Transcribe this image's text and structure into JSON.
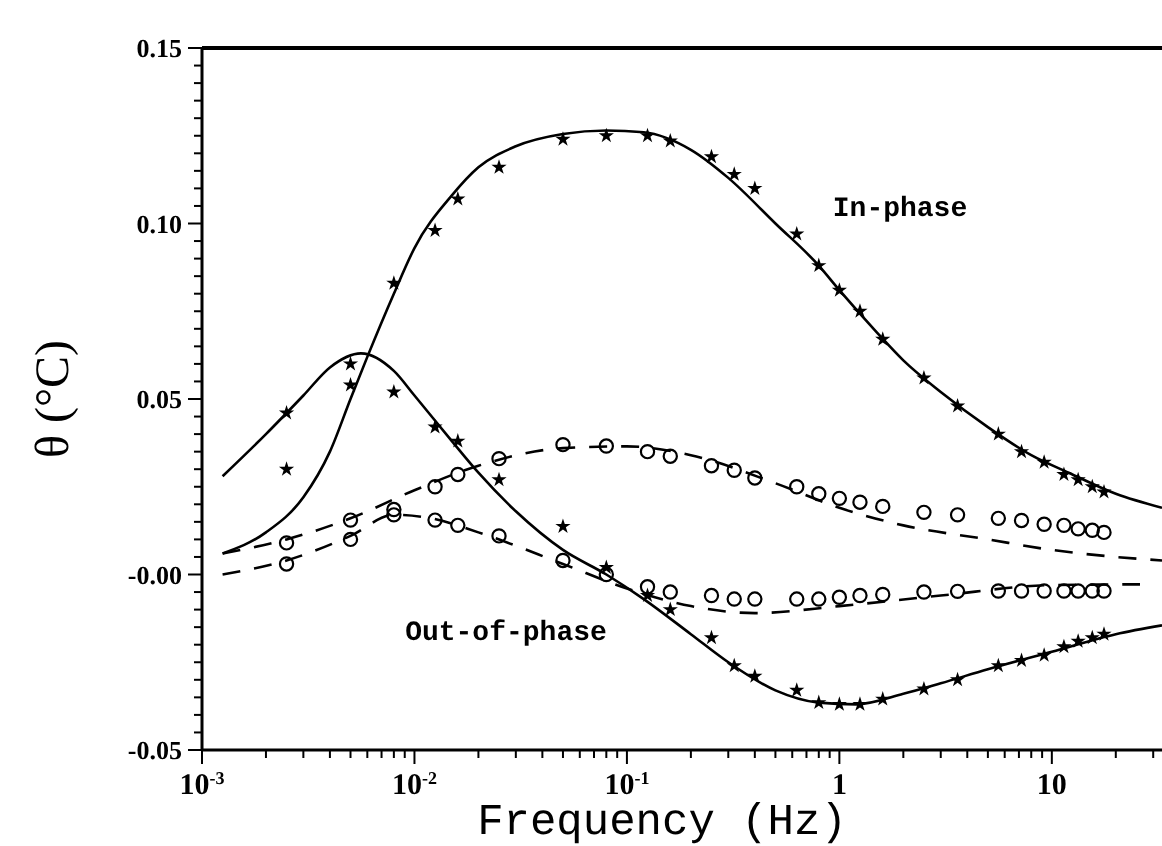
{
  "chart_data": {
    "type": "scatter",
    "xlabel": "Frequency (Hz)",
    "ylabel": "θ (°C)",
    "log": "x",
    "xlim": [
      0.001,
      33
    ],
    "ylim": [
      -0.05,
      0.15
    ],
    "xticks": [
      {
        "value": 0.001,
        "label": "10$^{-3}$"
      },
      {
        "value": 0.002,
        "label": null
      },
      {
        "value": 0.003,
        "label": null
      },
      {
        "value": 0.004,
        "label": null
      },
      {
        "value": 0.005,
        "label": null
      },
      {
        "value": 0.006,
        "label": null
      },
      {
        "value": 0.007,
        "label": null
      },
      {
        "value": 0.008,
        "label": null
      },
      {
        "value": 0.009,
        "label": null
      },
      {
        "value": 0.01,
        "label": "10$^{-2}$"
      },
      {
        "value": 0.02,
        "label": null
      },
      {
        "value": 0.03,
        "label": null
      },
      {
        "value": 0.04,
        "label": null
      },
      {
        "value": 0.05,
        "label": null
      },
      {
        "value": 0.06,
        "label": null
      },
      {
        "value": 0.07,
        "label": null
      },
      {
        "value": 0.08,
        "label": null
      },
      {
        "value": 0.09,
        "label": null
      },
      {
        "value": 0.1,
        "label": "10$^{-1}$"
      },
      {
        "value": 0.2,
        "label": null
      },
      {
        "value": 0.3,
        "label": null
      },
      {
        "value": 0.4,
        "label": null
      },
      {
        "value": 0.5,
        "label": null
      },
      {
        "value": 0.6,
        "label": null
      },
      {
        "value": 0.7,
        "label": null
      },
      {
        "value": 0.8,
        "label": null
      },
      {
        "value": 0.9,
        "label": null
      },
      {
        "value": 1,
        "label": "1"
      },
      {
        "value": 2,
        "label": null
      },
      {
        "value": 3,
        "label": null
      },
      {
        "value": 4,
        "label": null
      },
      {
        "value": 5,
        "label": null
      },
      {
        "value": 6,
        "label": null
      },
      {
        "value": 7,
        "label": null
      },
      {
        "value": 8,
        "label": null
      },
      {
        "value": 9,
        "label": null
      },
      {
        "value": 10,
        "label": "10"
      },
      {
        "value": 20,
        "label": null
      },
      {
        "value": 30,
        "label": null
      }
    ],
    "yticks": [
      {
        "value": -0.05,
        "label": "-0.05"
      },
      {
        "value": -0.045,
        "label": null
      },
      {
        "value": -0.04,
        "label": null
      },
      {
        "value": -0.035,
        "label": null
      },
      {
        "value": -0.03,
        "label": null
      },
      {
        "value": -0.025,
        "label": null
      },
      {
        "value": -0.02,
        "label": null
      },
      {
        "value": -0.015,
        "label": null
      },
      {
        "value": -0.01,
        "label": null
      },
      {
        "value": -0.005,
        "label": null
      },
      {
        "value": 0,
        "label": "-0.00"
      },
      {
        "value": 0.005,
        "label": null
      },
      {
        "value": 0.01,
        "label": null
      },
      {
        "value": 0.015,
        "label": null
      },
      {
        "value": 0.02,
        "label": null
      },
      {
        "value": 0.025,
        "label": null
      },
      {
        "value": 0.03,
        "label": null
      },
      {
        "value": 0.035,
        "label": null
      },
      {
        "value": 0.04,
        "label": null
      },
      {
        "value": 0.045,
        "label": null
      },
      {
        "value": 0.05,
        "label": "0.05"
      },
      {
        "value": 0.055,
        "label": null
      },
      {
        "value": 0.06,
        "label": null
      },
      {
        "value": 0.065,
        "label": null
      },
      {
        "value": 0.07,
        "label": null
      },
      {
        "value": 0.075,
        "label": null
      },
      {
        "value": 0.08,
        "label": null
      },
      {
        "value": 0.085,
        "label": null
      },
      {
        "value": 0.09,
        "label": null
      },
      {
        "value": 0.095,
        "label": null
      },
      {
        "value": 0.1,
        "label": "0.10"
      },
      {
        "value": 0.105,
        "label": null
      },
      {
        "value": 0.11,
        "label": null
      },
      {
        "value": 0.115,
        "label": null
      },
      {
        "value": 0.12,
        "label": null
      },
      {
        "value": 0.125,
        "label": null
      },
      {
        "value": 0.13,
        "label": null
      },
      {
        "value": 0.135,
        "label": null
      },
      {
        "value": 0.14,
        "label": null
      },
      {
        "value": 0.145,
        "label": null
      },
      {
        "value": 0.15,
        "label": "0.15"
      }
    ],
    "grid": false,
    "annotations": [
      "In-phase",
      "Out-of-phase"
    ],
    "series": [
      {
        "marker": "star",
        "color": "#000000",
        "x": [
          0.0025,
          0.005,
          0.008,
          0.0125,
          0.016,
          0.025,
          0.05,
          0.08,
          0.125,
          0.16,
          0.25,
          0.32,
          0.4,
          0.63,
          0.8,
          1,
          1.25,
          1.6,
          2.5,
          3.6,
          5.6,
          7.2,
          9.2,
          11.4,
          13.3,
          15.5,
          17.6
        ],
        "values": [
          0.03,
          0.06,
          0.083,
          0.098,
          0.107,
          0.116,
          0.124,
          0.125,
          0.125,
          0.1235,
          0.119,
          0.114,
          0.11,
          0.097,
          0.088,
          0.081,
          0.075,
          0.067,
          0.056,
          0.048,
          0.04,
          0.035,
          0.032,
          0.0285,
          0.027,
          0.025,
          0.0235
        ]
      },
      {
        "marker": "star",
        "color": "#000000",
        "x": [
          0.0025,
          0.005,
          0.008,
          0.0125,
          0.016,
          0.025,
          0.05,
          0.08,
          0.125,
          0.16,
          0.25,
          0.32,
          0.4,
          0.63,
          0.8,
          1,
          1.25,
          1.6,
          2.5,
          3.6,
          5.6,
          7.2,
          9.2,
          11.4,
          13.3,
          15.5,
          17.6
        ],
        "values": [
          0.046,
          0.054,
          0.052,
          0.042,
          0.038,
          0.027,
          0.0137,
          0.002,
          -0.006,
          -0.01,
          -0.018,
          -0.026,
          -0.029,
          -0.033,
          -0.0365,
          -0.037,
          -0.037,
          -0.0355,
          -0.0326,
          -0.03,
          -0.026,
          -0.0245,
          -0.023,
          -0.0206,
          -0.019,
          -0.018,
          -0.017
        ]
      },
      {
        "marker": "circle",
        "color": "#000000",
        "x": [
          0.0025,
          0.005,
          0.008,
          0.0125,
          0.016,
          0.025,
          0.05,
          0.08,
          0.125,
          0.16,
          0.25,
          0.32,
          0.4,
          0.63,
          0.8,
          1,
          1.25,
          1.6,
          2.5,
          3.6,
          5.6,
          7.2,
          9.2,
          11.4,
          13.3,
          15.5,
          17.6
        ],
        "values": [
          0.009,
          0.0155,
          0.0185,
          0.025,
          0.0285,
          0.033,
          0.037,
          0.0366,
          0.035,
          0.0337,
          0.031,
          0.0297,
          0.0275,
          0.025,
          0.023,
          0.0217,
          0.0206,
          0.0194,
          0.0177,
          0.017,
          0.016,
          0.0154,
          0.0143,
          0.014,
          0.013,
          0.0126,
          0.012
        ]
      },
      {
        "marker": "circle",
        "color": "#000000",
        "x": [
          0.0025,
          0.005,
          0.008,
          0.0125,
          0.016,
          0.025,
          0.05,
          0.08,
          0.125,
          0.16,
          0.25,
          0.32,
          0.4,
          0.63,
          0.8,
          1,
          1.25,
          1.6,
          2.5,
          3.6,
          5.6,
          7.2,
          9.2,
          11.4,
          13.3,
          15.5,
          17.6
        ],
        "values": [
          0.003,
          0.01,
          0.017,
          0.0155,
          0.014,
          0.011,
          0.004,
          0,
          -0.0035,
          -0.005,
          -0.006,
          -0.007,
          -0.007,
          -0.007,
          -0.007,
          -0.0065,
          -0.006,
          -0.0057,
          -0.005,
          -0.0048,
          -0.0047,
          -0.0047,
          -0.0047,
          -0.0047,
          -0.0047,
          -0.0047,
          -0.0047
        ]
      },
      {
        "type": "line",
        "line_style": "solid",
        "color": "#000000",
        "x": [
          0.00125,
          0.002,
          0.003,
          0.004,
          0.005,
          0.006,
          0.008,
          0.01,
          0.015,
          0.02,
          0.03,
          0.05,
          0.08,
          0.12,
          0.2,
          0.3,
          0.5,
          0.8,
          1,
          1.5,
          2,
          3,
          5,
          8,
          12,
          20,
          33
        ],
        "values": [
          0.006,
          0.012,
          0.022,
          0.035,
          0.05,
          0.062,
          0.08,
          0.093,
          0.108,
          0.116,
          0.122,
          0.1255,
          0.1265,
          0.126,
          0.121,
          0.113,
          0.1,
          0.088,
          0.081,
          0.069,
          0.061,
          0.052,
          0.042,
          0.034,
          0.029,
          0.023,
          0.019
        ]
      },
      {
        "type": "line",
        "line_style": "solid",
        "color": "#000000",
        "x": [
          0.00125,
          0.002,
          0.003,
          0.004,
          0.0056,
          0.008,
          0.01,
          0.015,
          0.02,
          0.03,
          0.05,
          0.08,
          0.12,
          0.2,
          0.3,
          0.5,
          0.8,
          1.2,
          2,
          3,
          5,
          10,
          20,
          33
        ],
        "values": [
          0.028,
          0.04,
          0.051,
          0.059,
          0.063,
          0.058,
          0.051,
          0.038,
          0.029,
          0.018,
          0.007,
          0,
          -0.007,
          -0.017,
          -0.025,
          -0.033,
          -0.0365,
          -0.037,
          -0.034,
          -0.031,
          -0.027,
          -0.022,
          -0.017,
          -0.0145
        ]
      },
      {
        "type": "line",
        "line_style": "dashed",
        "color": "#000000",
        "x": [
          0.00125,
          0.0025,
          0.005,
          0.01,
          0.02,
          0.05,
          0.1,
          0.2,
          0.5,
          1,
          2,
          5,
          10,
          20,
          33
        ],
        "values": [
          0.006,
          0.01,
          0.016,
          0.024,
          0.031,
          0.036,
          0.0365,
          0.034,
          0.026,
          0.019,
          0.014,
          0.01,
          0.007,
          0.005,
          0.004
        ]
      },
      {
        "type": "line",
        "line_style": "dashed",
        "color": "#000000",
        "x": [
          0.00125,
          0.0025,
          0.005,
          0.008,
          0.012,
          0.02,
          0.05,
          0.1,
          0.2,
          0.4,
          1,
          3,
          10,
          26
        ],
        "values": [
          0,
          0.004,
          0.011,
          0.017,
          0.016,
          0.012,
          0.003,
          -0.004,
          -0.009,
          -0.011,
          -0.009,
          -0.006,
          -0.003,
          -0.0028
        ]
      }
    ]
  }
}
